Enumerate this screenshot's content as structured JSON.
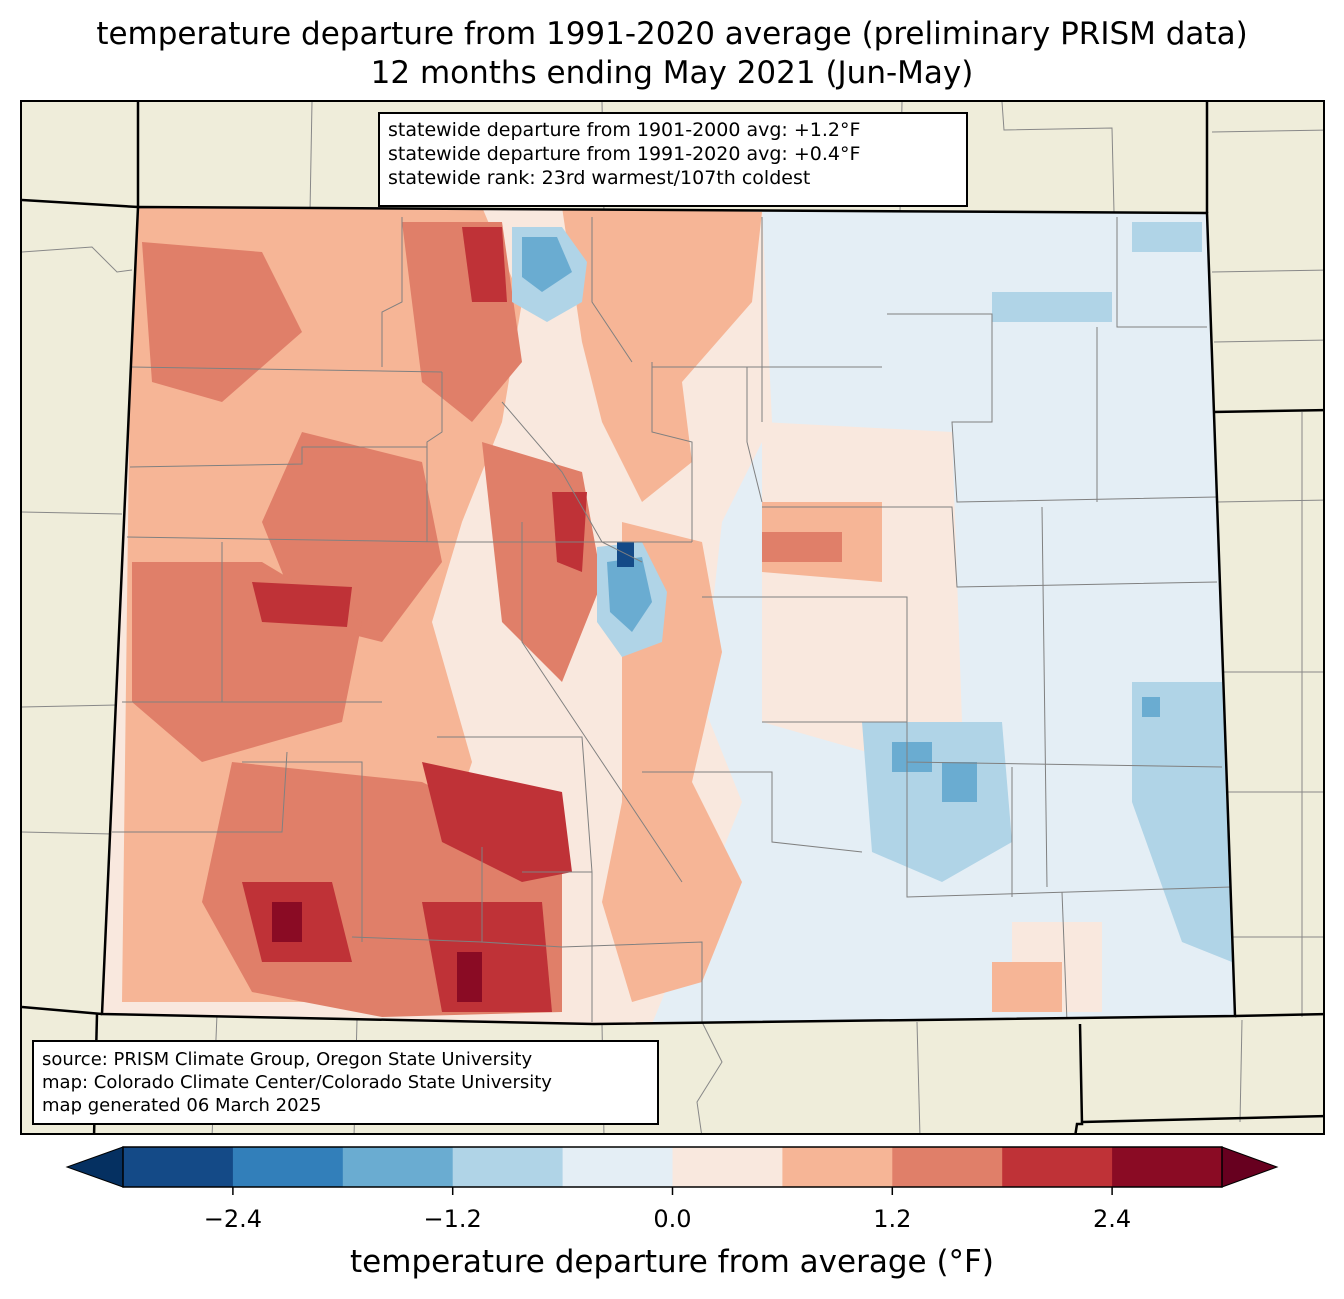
{
  "title": {
    "line1": "temperature departure from 1991-2020 average (preliminary PRISM data)",
    "line2": "12 months ending May 2021 (Jun-May)"
  },
  "stats_box": {
    "line1": "statewide departure from 1901-2000 avg: +1.2°F",
    "line2": "statewide departure from 1991-2020 avg: +0.4°F",
    "line3": "statewide rank: 23rd warmest/107th coldest"
  },
  "source_box": {
    "line1": "source: PRISM Climate Group, Oregon State University",
    "line2": "map: Colorado Climate Center/Colorado State University",
    "line3": "map generated 06 March 2025"
  },
  "colorbar": {
    "label": "temperature departure from average (°F)",
    "ticks": [
      "−2.4",
      "−1.2",
      "0.0",
      "1.2",
      "2.4"
    ],
    "tick_values": [
      -2.4,
      -1.2,
      0.0,
      1.2,
      2.4
    ],
    "bounds": [
      -3.0,
      -2.4,
      -1.8,
      -1.2,
      -0.6,
      0.0,
      0.6,
      1.2,
      1.8,
      2.4,
      3.0
    ],
    "colors": {
      "under": "#053061",
      "bins": [
        "#144a87",
        "#327fba",
        "#6aacd1",
        "#b0d4e7",
        "#e4eef5",
        "#f9e8de",
        "#f6b596",
        "#e07f69",
        "#bf3237",
        "#8a0b24"
      ],
      "over": "#67001f"
    }
  },
  "map_colors": {
    "background": "#efedda",
    "border": "#000000",
    "county_lines": "#808080"
  }
}
